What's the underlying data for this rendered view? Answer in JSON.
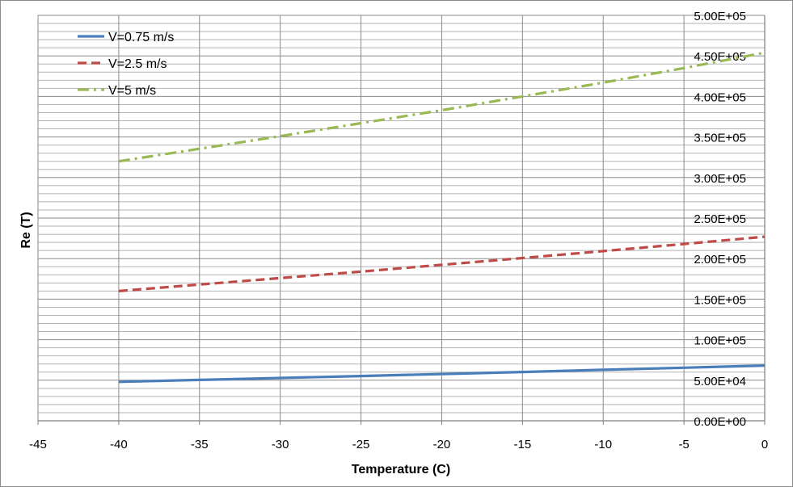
{
  "chart_data": {
    "type": "line",
    "title": "",
    "xlabel": "Temperature  (C)",
    "ylabel": "Re (T)",
    "xlim": [
      -45,
      0
    ],
    "ylim": [
      0,
      500000
    ],
    "x_ticks": [
      -45,
      -40,
      -35,
      -30,
      -25,
      -20,
      -15,
      -10,
      -5,
      0
    ],
    "x_tick_labels": [
      "-45",
      "-40",
      "-35",
      "-30",
      "-25",
      "-20",
      "-15",
      "-10",
      "-5",
      "0"
    ],
    "y_ticks": [
      0,
      50000,
      100000,
      150000,
      200000,
      250000,
      300000,
      350000,
      400000,
      450000,
      500000
    ],
    "y_tick_labels": [
      "0.00E+00",
      "5.00E+04",
      "1.00E+05",
      "1.50E+05",
      "2.00E+05",
      "2.50E+05",
      "3.00E+05",
      "3.50E+05",
      "4.00E+05",
      "4.50E+05",
      "5.00E+05"
    ],
    "minor_y_step": 10000,
    "y_axis_position": "right",
    "legend_position": "top-left",
    "grid": true,
    "x": [
      -40,
      -35,
      -30,
      -25,
      -20,
      -15,
      -10,
      -5,
      0
    ],
    "series": [
      {
        "name": "V=0.75 m/s",
        "color": "#4a7ebb",
        "dash": "solid",
        "values": [
          48000,
          50400,
          52800,
          55200,
          57700,
          60200,
          62800,
          65400,
          68100
        ]
      },
      {
        "name": "V=2.5 m/s",
        "color": "#be4b48",
        "dash": "dash",
        "values": [
          160000,
          168000,
          176000,
          184000,
          192300,
          200700,
          209300,
          218000,
          227000
        ]
      },
      {
        "name": "V=5 m/s",
        "color": "#98b954",
        "dash": "dashdot",
        "values": [
          320000,
          335500,
          351000,
          367000,
          383000,
          400000,
          417000,
          435000,
          454000
        ]
      }
    ]
  }
}
